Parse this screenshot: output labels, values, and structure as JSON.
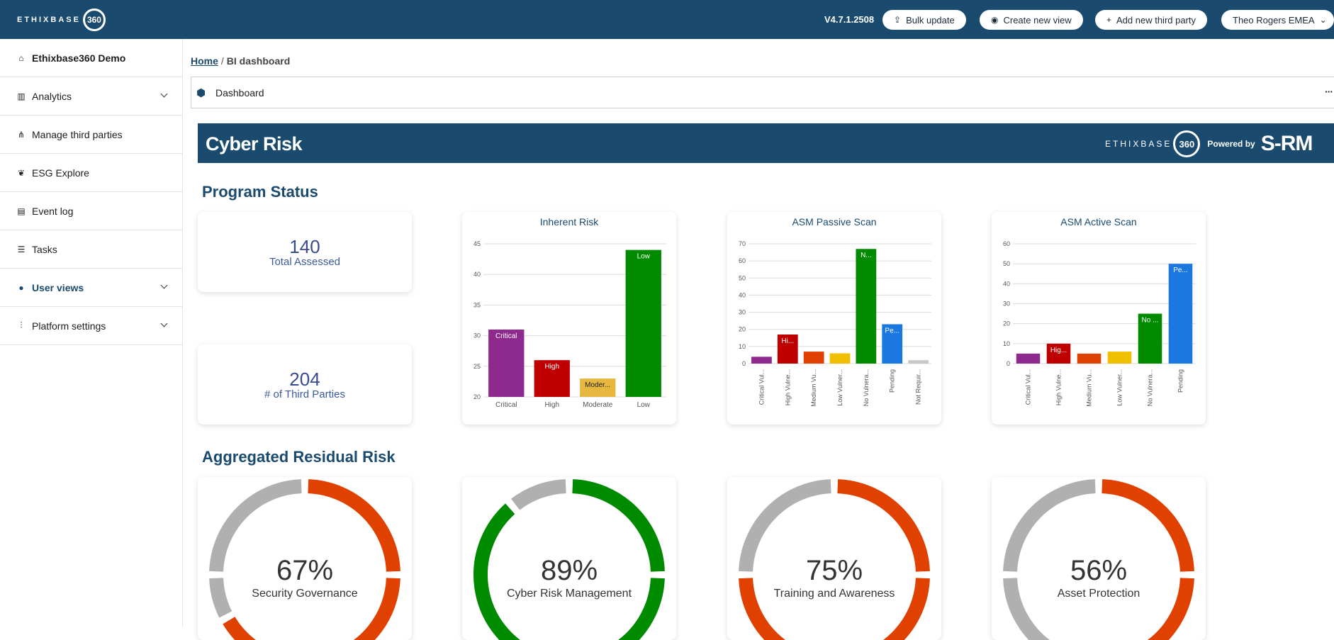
{
  "app": {
    "logo_text": "ETHIXBASE",
    "logo_num": "360",
    "version": "V4.7.1.2508",
    "buttons": {
      "bulk_update": "Bulk update",
      "create_view": "Create new view",
      "add_third_party": "Add new third party",
      "user": "Theo Rogers EMEA"
    }
  },
  "sidebar": {
    "items": [
      {
        "label": "Ethixbase360 Demo",
        "icon": "home-icon"
      },
      {
        "label": "Analytics",
        "icon": "chart-icon"
      },
      {
        "label": "Manage third parties",
        "icon": "hierarchy-icon"
      },
      {
        "label": "ESG Explore",
        "icon": "leaf-icon"
      },
      {
        "label": "Event log",
        "icon": "log-icon"
      },
      {
        "label": "Tasks",
        "icon": "tasks-icon"
      },
      {
        "label": "User views",
        "icon": "user-icon"
      },
      {
        "label": "Platform settings",
        "icon": "sliders-icon"
      }
    ]
  },
  "breadcrumb": {
    "home": "Home",
    "sep": "/",
    "current": "BI dashboard"
  },
  "dashboard_tab": {
    "label": "Dashboard",
    "more": "···"
  },
  "banner": {
    "title": "Cyber Risk",
    "logo_text": "ETHIXBASE",
    "logo_num": "360",
    "powered_by": "Powered by",
    "srm": "S-RM"
  },
  "sections": {
    "program_status": "Program Status",
    "aggregated": "Aggregated Residual Risk"
  },
  "kpis": [
    {
      "value": "140",
      "label": "Total Assessed"
    },
    {
      "value": "204",
      "label": "# of Third Parties"
    }
  ],
  "chart_data": [
    {
      "type": "bar",
      "title": "Inherent Risk",
      "categories": [
        "Critical",
        "High",
        "Moderate",
        "Low"
      ],
      "values": [
        31,
        26,
        23,
        44
      ],
      "bar_labels": [
        "Critical",
        "High",
        "Moder...",
        "Low"
      ],
      "colors": [
        "#8e2a8e",
        "#c00000",
        "#e6b840",
        "#008a00"
      ],
      "ylim": [
        20,
        45
      ],
      "yticks": [
        20,
        25,
        30,
        35,
        40,
        45
      ]
    },
    {
      "type": "bar",
      "title": "ASM Passive Scan",
      "categories": [
        "Critical Vul...",
        "High Vulne...",
        "Medium Vu...",
        "Low Vulner...",
        "No Vulnera...",
        "Pending",
        "Not Requir..."
      ],
      "values": [
        4,
        17,
        7,
        6,
        67,
        23,
        2
      ],
      "bar_labels": [
        "",
        "Hi...",
        "",
        "",
        "N...",
        "Pe...",
        ""
      ],
      "colors": [
        "#8e2a8e",
        "#c00000",
        "#e04000",
        "#f0c000",
        "#008a00",
        "#1a78e0",
        "#c8c8c8"
      ],
      "ylim": [
        0,
        70
      ],
      "yticks": [
        0,
        10,
        20,
        30,
        40,
        50,
        60,
        70
      ]
    },
    {
      "type": "bar",
      "title": "ASM Active Scan",
      "categories": [
        "Critical Vul...",
        "High Vulne...",
        "Medium Vu...",
        "Low Vulner...",
        "No Vulnera...",
        "Pending"
      ],
      "values": [
        5,
        10,
        5,
        6,
        25,
        50
      ],
      "bar_labels": [
        "",
        "Hig...",
        "",
        "",
        "No ...",
        "Pe..."
      ],
      "colors": [
        "#8e2a8e",
        "#c00000",
        "#e04000",
        "#f0c000",
        "#008a00",
        "#1a78e0"
      ],
      "ylim": [
        0,
        60
      ],
      "yticks": [
        0,
        10,
        20,
        30,
        40,
        50,
        60
      ]
    },
    {
      "type": "pie",
      "title": "Security Governance",
      "value": 67,
      "display": "67%",
      "color": "#e04000"
    },
    {
      "type": "pie",
      "title": "Cyber Risk Management",
      "value": 89,
      "display": "89%",
      "color": "#008a00"
    },
    {
      "type": "pie",
      "title": "Training and Awareness",
      "value": 75,
      "display": "75%",
      "color": "#e04000"
    },
    {
      "type": "pie",
      "title": "Asset Protection",
      "value": 56,
      "display": "56%",
      "color": "#e04000"
    }
  ]
}
